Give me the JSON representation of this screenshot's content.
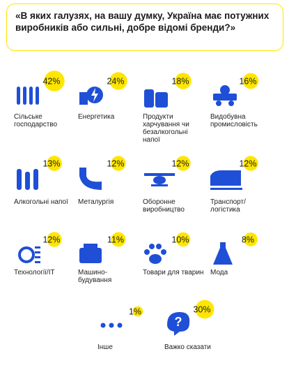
{
  "chart_data": {
    "type": "icon-grid",
    "title": "«В яких галузях, на вашу думку, Україна має потужних виробників або сильні, добре відомі бренди?»",
    "categories": [
      "Сільське господарство",
      "Енергетика",
      "Продукти харчування чи безалкогольні напої",
      "Видобувна промисловість",
      "Алкогольні напої",
      "Металургія",
      "Оборонне виробництво",
      "Транспорт/ логістика",
      "Технології/IT",
      "Машино- будування",
      "Товари для тварин",
      "Мода",
      "Інше",
      "Важко сказати"
    ],
    "values": [
      42,
      24,
      18,
      16,
      13,
      12,
      12,
      12,
      12,
      11,
      10,
      8,
      1,
      30
    ],
    "value_labels": [
      "42%",
      "24%",
      "18%",
      "16%",
      "13%",
      "12%",
      "12%",
      "12%",
      "12%",
      "11%",
      "10%",
      "8%",
      "1%",
      "30%"
    ],
    "color": "#ffe600"
  }
}
